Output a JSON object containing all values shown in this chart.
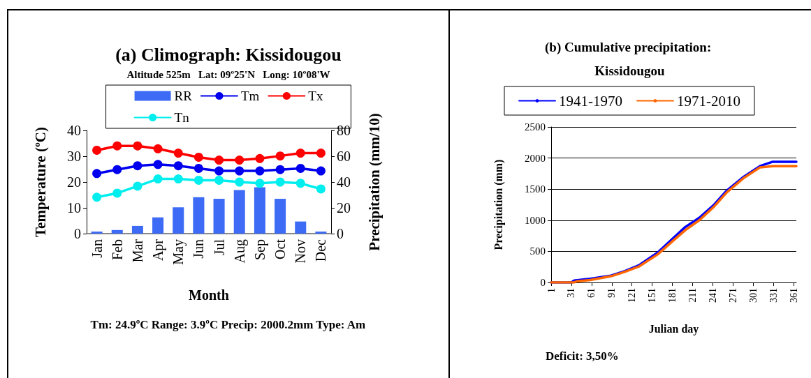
{
  "chart_data": [
    {
      "type": "line",
      "title": "(a) Climograph: Kissidougou",
      "subtitle": "Altitude 525m   Lat: 09º25'N   Long: 10º08'W",
      "xlabel": "Month",
      "ylabel": "Temperature (ºC)",
      "y2label": "Precipitation (mm/10)",
      "categories": [
        "Jan",
        "Feb",
        "Mar",
        "Apr",
        "May",
        "Jun",
        "Jul",
        "Aug",
        "Sep",
        "Oct",
        "Nov",
        "Dec"
      ],
      "series": [
        {
          "name": "RR",
          "type": "bar",
          "axis": "y2",
          "color": "#3d6bf5",
          "values": [
            1.6,
            2.8,
            6,
            12.6,
            20.4,
            28.2,
            27,
            33.8,
            36,
            27,
            9.4,
            1.6
          ]
        },
        {
          "name": "Tm",
          "color": "#0000ee",
          "values": [
            23.3,
            24.8,
            26.3,
            26.8,
            26.3,
            25.3,
            24.3,
            24.3,
            24.3,
            24.8,
            25.3,
            24.3
          ]
        },
        {
          "name": "Tx",
          "color": "#ff0000",
          "values": [
            32.3,
            34,
            34,
            32.9,
            31.2,
            29.6,
            28.5,
            28.5,
            29.1,
            30.1,
            31.2,
            31.2
          ]
        },
        {
          "name": "Tn",
          "color": "#00eeee",
          "values": [
            14.1,
            15.7,
            18.4,
            21.2,
            21.2,
            20.7,
            20.7,
            20,
            19.5,
            20,
            19.5,
            17.3
          ]
        }
      ],
      "ylim": [
        0,
        40
      ],
      "yticks": [
        0,
        10,
        20,
        30,
        40
      ],
      "y2lim": [
        0,
        80
      ],
      "y2ticks": [
        0,
        20,
        40,
        60,
        80
      ],
      "marker": "circle",
      "legend": "top",
      "grid": false,
      "annotations": [
        "Tm: 24.9ºC Range: 3.9ºC Precip: 2000.2mm Type: Am"
      ]
    },
    {
      "type": "line",
      "title": "(b) Cumulative precipitation: Kissidougou",
      "xlabel": "Julian day",
      "ylabel": "Precipitation (mm)",
      "series": [
        {
          "name": "1941-1970",
          "color": "#0000ff",
          "x": [
            1,
            31,
            35,
            59,
            90,
            110,
            132,
            159,
            183,
            200,
            221,
            242,
            262,
            287,
            311,
            330,
            365
          ],
          "values": [
            0,
            0,
            30,
            60,
            110,
            180,
            280,
            480,
            720,
            890,
            1040,
            1240,
            1480,
            1700,
            1870,
            1940,
            1940
          ]
        },
        {
          "name": "1971-2010",
          "color": "#ff6600",
          "x": [
            1,
            35,
            40,
            59,
            90,
            110,
            132,
            159,
            183,
            200,
            221,
            242,
            262,
            287,
            311,
            322,
            330,
            365
          ],
          "values": [
            0,
            0,
            20,
            40,
            100,
            170,
            260,
            450,
            680,
            840,
            1000,
            1210,
            1450,
            1680,
            1850,
            1860,
            1870,
            1870
          ]
        }
      ],
      "xlim": [
        1,
        365
      ],
      "xticks": [
        1,
        31,
        61,
        91,
        121,
        151,
        181,
        211,
        241,
        271,
        301,
        331,
        361
      ],
      "ylim": [
        0,
        2500
      ],
      "yticks": [
        0,
        500,
        1000,
        1500,
        2000,
        2500
      ],
      "marker": "none",
      "legend": "top",
      "grid": "y",
      "annotations": [
        "Deficit: 3,50%"
      ]
    }
  ]
}
